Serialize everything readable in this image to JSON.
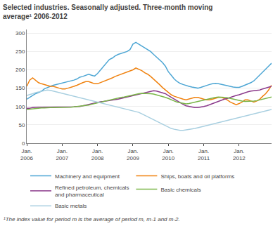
{
  "chart_data": {
    "type": "line",
    "title": "Selected industries. Seasonally adjusted. Three-month moving\naverage¹ 2006-2012",
    "footnote": "¹The index value for period m is the average of period m, m-1 and m-2.",
    "categories": [
      "Jan.\n2006",
      null,
      null,
      null,
      null,
      null,
      null,
      null,
      null,
      null,
      null,
      null,
      "Jan.\n2007",
      null,
      null,
      null,
      null,
      null,
      null,
      null,
      null,
      null,
      null,
      null,
      "Jan.\n2008",
      null,
      null,
      null,
      null,
      null,
      null,
      null,
      null,
      null,
      null,
      null,
      "Jan.\n2009",
      null,
      null,
      null,
      null,
      null,
      null,
      null,
      null,
      null,
      null,
      null,
      "Jan.\n2010",
      null,
      null,
      null,
      null,
      null,
      null,
      null,
      null,
      null,
      null,
      null,
      "Jan.\n2011",
      null,
      null,
      null,
      null,
      null,
      null,
      null,
      null,
      null,
      null,
      null,
      "Jan.\n2012",
      null,
      null,
      null,
      null,
      null,
      null,
      null,
      null,
      null,
      null,
      null
    ],
    "ylim": [
      0,
      310
    ],
    "yticks": [
      0,
      50,
      100,
      150,
      200,
      250,
      300
    ],
    "grid": true,
    "legend": "bottom",
    "series": [
      {
        "name": "Machinery and equipment",
        "color": "#4da6d4",
        "values": [
          120,
          125,
          130,
          135,
          138,
          142,
          148,
          152,
          155,
          158,
          160,
          162,
          164,
          165,
          168,
          170,
          172,
          175,
          180,
          182,
          185,
          188,
          185,
          183,
          190,
          200,
          210,
          220,
          228,
          232,
          238,
          242,
          245,
          248,
          250,
          255,
          270,
          275,
          270,
          265,
          260,
          255,
          250,
          242,
          235,
          228,
          220,
          210,
          195,
          185,
          175,
          168,
          163,
          160,
          157,
          155,
          153,
          152,
          150,
          152,
          155,
          158,
          160,
          162,
          163,
          162,
          160,
          158,
          157,
          155,
          153,
          152,
          152,
          155,
          158,
          162,
          165,
          170,
          178,
          185,
          192,
          200,
          210,
          218
        ]
      },
      {
        "name": "Ships, boats and oil platforms",
        "color": "#f0820f",
        "values": [
          155,
          172,
          178,
          172,
          165,
          162,
          160,
          158,
          155,
          155,
          152,
          150,
          148,
          148,
          150,
          152,
          155,
          158,
          162,
          165,
          168,
          168,
          165,
          162,
          162,
          165,
          168,
          172,
          175,
          178,
          182,
          185,
          188,
          192,
          195,
          198,
          200,
          205,
          202,
          198,
          192,
          188,
          182,
          175,
          168,
          160,
          152,
          145,
          138,
          132,
          128,
          125,
          122,
          120,
          118,
          120,
          122,
          125,
          125,
          122,
          120,
          118,
          118,
          120,
          122,
          125,
          125,
          122,
          118,
          112,
          108,
          105,
          108,
          112,
          118,
          118,
          115,
          112,
          115,
          120,
          128,
          135,
          145,
          158
        ]
      },
      {
        "name": "Refined petroleum, chemicals\nand pharmaceutical",
        "color": "#8b3a8b",
        "values": [
          95,
          95,
          97,
          98,
          98,
          98,
          98,
          98,
          98,
          98,
          98,
          98,
          98,
          98,
          98,
          98,
          99,
          100,
          100,
          102,
          104,
          106,
          108,
          110,
          112,
          113,
          114,
          115,
          116,
          117,
          118,
          120,
          122,
          124,
          126,
          128,
          130,
          132,
          134,
          136,
          138,
          140,
          142,
          143,
          142,
          140,
          138,
          135,
          130,
          125,
          120,
          115,
          110,
          106,
          102,
          100,
          98,
          97,
          97,
          98,
          100,
          102,
          105,
          108,
          112,
          115,
          118,
          120,
          122,
          125,
          128,
          130,
          132,
          135,
          138,
          140,
          142,
          143,
          144,
          145,
          148,
          150,
          152,
          155
        ]
      },
      {
        "name": "Basic chemicals",
        "color": "#7ab648",
        "values": [
          92,
          93,
          94,
          95,
          95,
          96,
          96,
          97,
          97,
          97,
          97,
          97,
          97,
          97,
          98,
          98,
          99,
          100,
          100,
          101,
          102,
          104,
          106,
          108,
          110,
          112,
          114,
          116,
          118,
          120,
          122,
          124,
          125,
          126,
          128,
          130,
          132,
          134,
          135,
          136,
          136,
          136,
          135,
          134,
          132,
          130,
          128,
          125,
          122,
          118,
          115,
          112,
          110,
          108,
          107,
          108,
          110,
          112,
          114,
          116,
          118,
          120,
          122,
          124,
          125,
          126,
          126,
          125,
          124,
          122,
          120,
          118,
          116,
          115,
          114,
          114,
          114,
          115,
          116,
          118,
          120,
          122,
          124,
          126
        ]
      },
      {
        "name": "Basic metals",
        "color": "#a8cfe0",
        "values": [
          130,
          132,
          135,
          138,
          140,
          142,
          144,
          145,
          144,
          142,
          140,
          138,
          136,
          134,
          132,
          130,
          128,
          126,
          124,
          122,
          120,
          118,
          116,
          114,
          112,
          110,
          108,
          106,
          104,
          102,
          100,
          98,
          96,
          94,
          92,
          90,
          88,
          86,
          84,
          80,
          76,
          72,
          68,
          64,
          60,
          56,
          52,
          48,
          44,
          40,
          38,
          36,
          35,
          35,
          36,
          37,
          38,
          40,
          42,
          44,
          46,
          48,
          50,
          52,
          54,
          56,
          58,
          60,
          62,
          64,
          66,
          68,
          70,
          72,
          74,
          76,
          78,
          80,
          82,
          84,
          86,
          88,
          90,
          92
        ]
      }
    ]
  }
}
